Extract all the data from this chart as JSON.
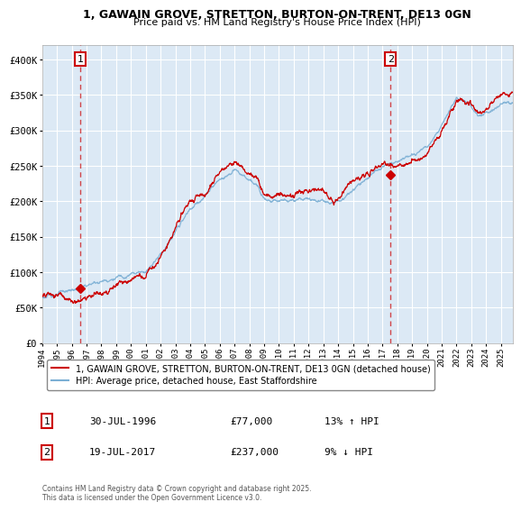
{
  "title_line1": "1, GAWAIN GROVE, STRETTON, BURTON-ON-TRENT, DE13 0GN",
  "title_line2": "Price paid vs. HM Land Registry's House Price Index (HPI)",
  "legend_line1": "1, GAWAIN GROVE, STRETTON, BURTON-ON-TRENT, DE13 0GN (detached house)",
  "legend_line2": "HPI: Average price, detached house, East Staffordshire",
  "sale1_label": "1",
  "sale1_date": "30-JUL-1996",
  "sale1_price": "£77,000",
  "sale1_hpi": "13% ↑ HPI",
  "sale2_label": "2",
  "sale2_date": "19-JUL-2017",
  "sale2_price": "£237,000",
  "sale2_hpi": "9% ↓ HPI",
  "footer": "Contains HM Land Registry data © Crown copyright and database right 2025.\nThis data is licensed under the Open Government Licence v3.0.",
  "line_color_red": "#cc0000",
  "line_color_blue": "#7bafd4",
  "bg_color": "#dce9f5",
  "background_color": "#ffffff",
  "ylim": [
    0,
    420000
  ],
  "yticks": [
    0,
    50000,
    100000,
    150000,
    200000,
    250000,
    300000,
    350000,
    400000
  ],
  "ytick_labels": [
    "£0",
    "£50K",
    "£100K",
    "£150K",
    "£200K",
    "£250K",
    "£300K",
    "£350K",
    "£400K"
  ],
  "sale1_x": 1996.58,
  "sale1_y": 77000,
  "sale2_x": 2017.54,
  "sale2_y": 237000,
  "xmin": 1994.0,
  "xmax": 2025.8
}
